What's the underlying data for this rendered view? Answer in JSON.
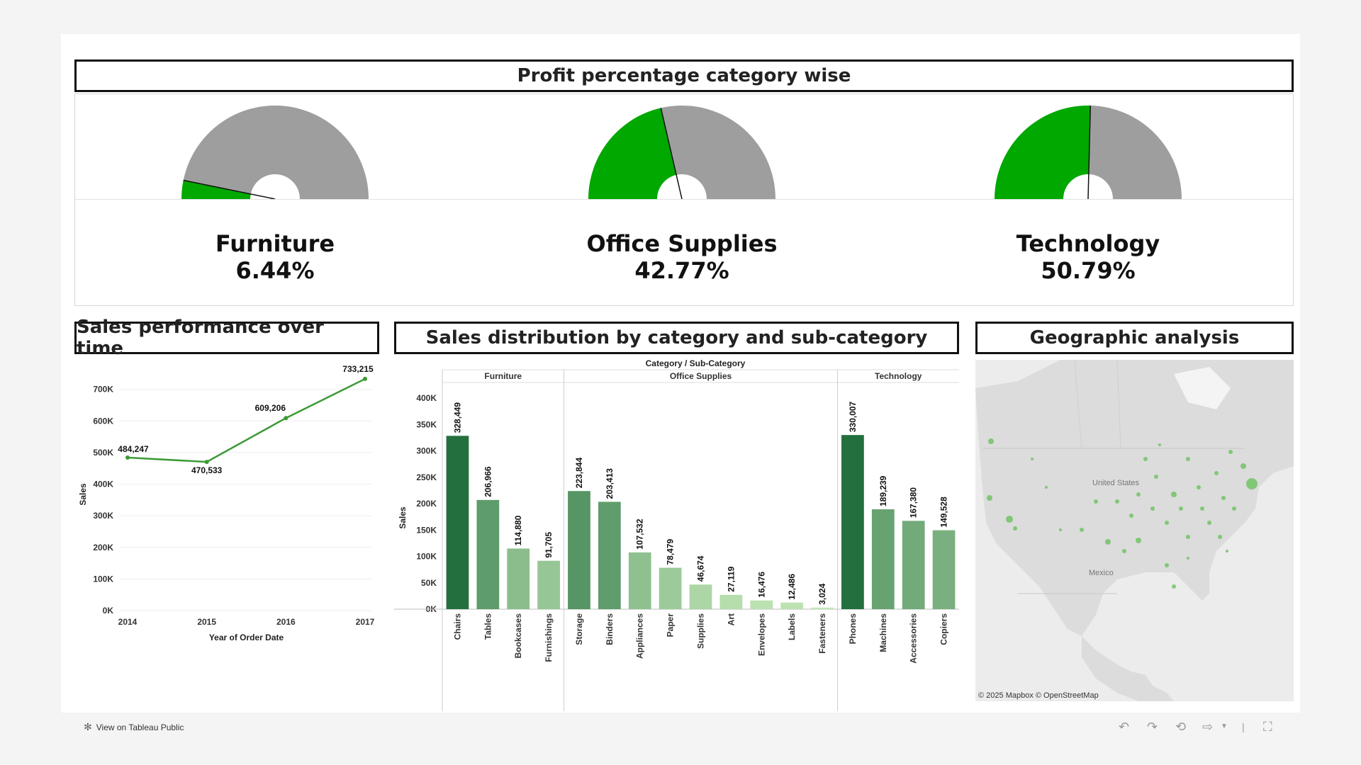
{
  "gauges": {
    "title": "Profit percentage category wise",
    "items": [
      {
        "name": "Furniture",
        "pct_label": "6.44%",
        "value": 6.44
      },
      {
        "name": "Office Supplies",
        "pct_label": "42.77%",
        "value": 42.77
      },
      {
        "name": "Technology",
        "pct_label": "50.79%",
        "value": 50.79
      }
    ],
    "colors": {
      "fill": "#00a800",
      "rest": "#9e9e9e"
    }
  },
  "line_panel": {
    "title": "Sales performance over time"
  },
  "bar_panel": {
    "title": "Sales distribution by category and sub-category",
    "header": "Category / Sub-Category"
  },
  "map_panel": {
    "title": "Geographic analysis",
    "labels": {
      "us": "United States",
      "mexico": "Mexico"
    },
    "attribution": "© 2025 Mapbox  © OpenStreetMap"
  },
  "footer": {
    "tableau_link": "View on Tableau Public"
  },
  "chart_data": [
    {
      "type": "line",
      "x": [
        "2014",
        "2015",
        "2016",
        "2017"
      ],
      "series": [
        {
          "values": [
            484247,
            470533,
            609206,
            733215
          ]
        }
      ],
      "data_labels": [
        "484,247",
        "470,533",
        "609,206",
        "733,215"
      ],
      "xlabel": "Year of Order Date",
      "ylabel": "Sales",
      "y_ticks": [
        "0K",
        "100K",
        "200K",
        "300K",
        "400K",
        "500K",
        "600K",
        "700K"
      ],
      "ylim": [
        0,
        780000
      ],
      "grid": true,
      "color": "#3c9a35"
    },
    {
      "type": "bar",
      "groups": [
        {
          "name": "Furniture",
          "categories": [
            "Chairs",
            "Tables",
            "Bookcases",
            "Furnishings"
          ],
          "values": [
            328449,
            206966,
            114880,
            91705
          ],
          "labels": [
            "328,449",
            "206,966",
            "114,880",
            "91,705"
          ]
        },
        {
          "name": "Office Supplies",
          "categories": [
            "Storage",
            "Binders",
            "Appliances",
            "Paper",
            "Supplies",
            "Art",
            "Envelopes",
            "Labels",
            "Fasteners"
          ],
          "values": [
            223844,
            203413,
            107532,
            78479,
            46674,
            27119,
            16476,
            12486,
            3024
          ],
          "labels": [
            "223,844",
            "203,413",
            "107,532",
            "78,479",
            "46,674",
            "27,119",
            "16,476",
            "12,486",
            "3,024"
          ]
        },
        {
          "name": "Technology",
          "categories": [
            "Phones",
            "Machines",
            "Accessories",
            "Copiers"
          ],
          "values": [
            330007,
            189239,
            167380,
            149528
          ],
          "labels": [
            "330,007",
            "189,239",
            "167,380",
            "149,528"
          ]
        }
      ],
      "ylabel": "Sales",
      "y_ticks": [
        "0K",
        "50K",
        "100K",
        "150K",
        "200K",
        "250K",
        "300K",
        "350K",
        "400K"
      ],
      "ylim": [
        0,
        400000
      ],
      "color_scale": [
        "#c3e7b6",
        "#1e6b3a"
      ]
    }
  ]
}
